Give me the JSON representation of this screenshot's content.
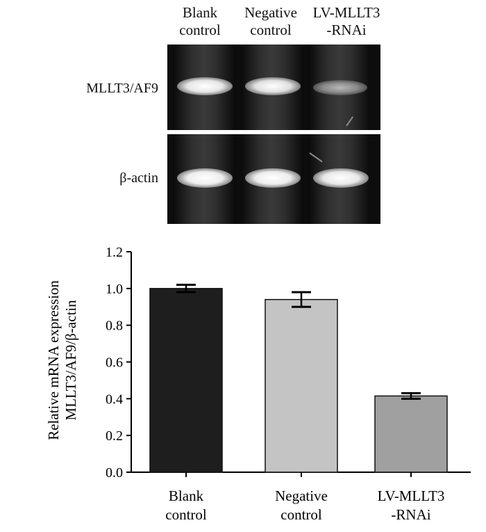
{
  "gel": {
    "lanes": [
      {
        "line1": "Blank",
        "line2": "control"
      },
      {
        "line1": "Negative",
        "line2": "control"
      },
      {
        "line1": "LV-MLLT3",
        "line2": "-RNAi"
      }
    ],
    "rows": [
      {
        "label": "MLLT3/AF9"
      },
      {
        "label": "β-actin"
      }
    ]
  },
  "chart_data": {
    "type": "bar",
    "categories": [
      "Blank control",
      "Negative control",
      "LV-MLLT3 -RNAi"
    ],
    "category_lines": [
      [
        "Blank",
        "control"
      ],
      [
        "Negative",
        "control"
      ],
      [
        "LV-MLLT3",
        "-RNAi"
      ]
    ],
    "values": [
      1.0,
      0.94,
      0.415
    ],
    "errors": [
      0.02,
      0.04,
      0.015
    ],
    "colors": [
      "#1e1e1e",
      "#c4c4c4",
      "#a0a0a0"
    ],
    "ylabel_lines": [
      "Relative mRNA expression",
      "MLLT3/AF9/β-actin"
    ],
    "ylim": [
      0.0,
      1.2
    ],
    "yticks": [
      "0.0",
      "0.2",
      "0.4",
      "0.6",
      "0.8",
      "1.0",
      "1.2"
    ],
    "grid": false
  }
}
